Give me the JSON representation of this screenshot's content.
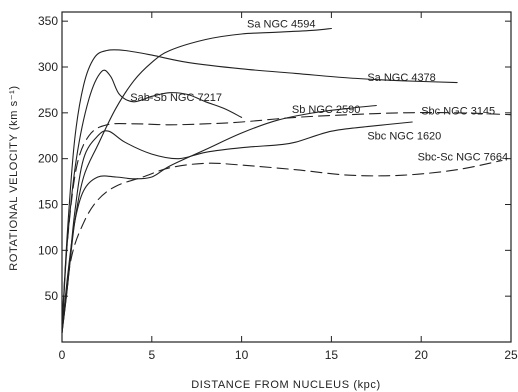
{
  "chart_data": {
    "type": "line",
    "xlabel": "DISTANCE  FROM NUCLEUS (kpc)",
    "ylabel": "ROTATIONAL VELOCITY  (km s⁻¹)",
    "xlim": [
      0,
      25
    ],
    "ylim": [
      0,
      360
    ],
    "xticks": [
      0,
      5,
      10,
      15,
      20,
      25
    ],
    "yticks": [
      50,
      100,
      150,
      200,
      250,
      300,
      350
    ],
    "grid": false,
    "series": [
      {
        "name": "Sa  NGC 4594",
        "style": "solid",
        "x": [
          0,
          0.3,
          0.7,
          1.2,
          2,
          3,
          4,
          5,
          6,
          8,
          10,
          12,
          14,
          15
        ],
        "y": [
          10,
          60,
          130,
          180,
          215,
          255,
          285,
          305,
          318,
          330,
          336,
          338,
          340,
          342
        ]
      },
      {
        "name": "Sa  NGC 4378",
        "style": "solid",
        "x": [
          0,
          0.3,
          0.7,
          1.2,
          1.8,
          2.5,
          3.5,
          5,
          7,
          10,
          13,
          16,
          19,
          22
        ],
        "y": [
          15,
          120,
          220,
          280,
          310,
          318,
          318,
          313,
          305,
          298,
          293,
          288,
          285,
          283
        ]
      },
      {
        "name": "Sab-Sb  NGC 7217",
        "style": "solid",
        "x": [
          0,
          0.3,
          0.8,
          1.5,
          2.2,
          2.7,
          3.2,
          4,
          5,
          6,
          7,
          8,
          9,
          10
        ],
        "y": [
          10,
          110,
          200,
          265,
          295,
          290,
          270,
          262,
          268,
          272,
          270,
          262,
          255,
          245
        ]
      },
      {
        "name": "Sb  NGC 2590",
        "style": "solid",
        "x": [
          0,
          0.3,
          0.7,
          1.2,
          2,
          3,
          4,
          5,
          6,
          8,
          10,
          12,
          14,
          16,
          17.5
        ],
        "y": [
          10,
          70,
          130,
          165,
          180,
          180,
          178,
          180,
          192,
          210,
          228,
          242,
          250,
          255,
          258
        ]
      },
      {
        "name": "Sbc  NGC 3145",
        "style": "dashed",
        "x": [
          0,
          0.3,
          0.8,
          1.5,
          2.5,
          4,
          6,
          8,
          10,
          13,
          16,
          19,
          22,
          25
        ],
        "y": [
          20,
          110,
          190,
          225,
          237,
          238,
          237,
          238,
          240,
          245,
          248,
          250,
          250,
          248
        ]
      },
      {
        "name": "Sbc  NGC 1620",
        "style": "solid",
        "x": [
          0,
          0.3,
          0.7,
          1.2,
          2,
          2.6,
          3.5,
          5,
          6.5,
          8,
          10,
          12,
          13,
          15,
          17,
          19.5
        ],
        "y": [
          10,
          60,
          140,
          200,
          225,
          230,
          218,
          205,
          200,
          207,
          212,
          215,
          218,
          230,
          235,
          240
        ]
      },
      {
        "name": "Sbc-Sc  NGC 7664",
        "style": "dashed",
        "x": [
          0,
          0.5,
          1.2,
          2,
          3,
          4.5,
          6,
          8,
          10,
          13,
          16,
          19,
          22,
          24.5
        ],
        "y": [
          15,
          90,
          130,
          155,
          170,
          180,
          190,
          195,
          193,
          188,
          182,
          182,
          188,
          198
        ]
      }
    ],
    "labels": [
      {
        "text": "Sa  NGC 4594",
        "x": 10.3,
        "y": 343
      },
      {
        "text": "Sa  NGC 4378",
        "x": 17.0,
        "y": 285
      },
      {
        "text": "Sab-Sb  NGC 7217",
        "x": 3.8,
        "y": 263
      },
      {
        "text": "Sb  NGC 2590",
        "x": 12.8,
        "y": 250
      },
      {
        "text": "Sbc  NGC 3145",
        "x": 20.0,
        "y": 248
      },
      {
        "text": "Sbc  NGC 1620",
        "x": 17.0,
        "y": 221
      },
      {
        "text": "Sbc-Sc  NGC 7664",
        "x": 19.8,
        "y": 198
      }
    ]
  }
}
